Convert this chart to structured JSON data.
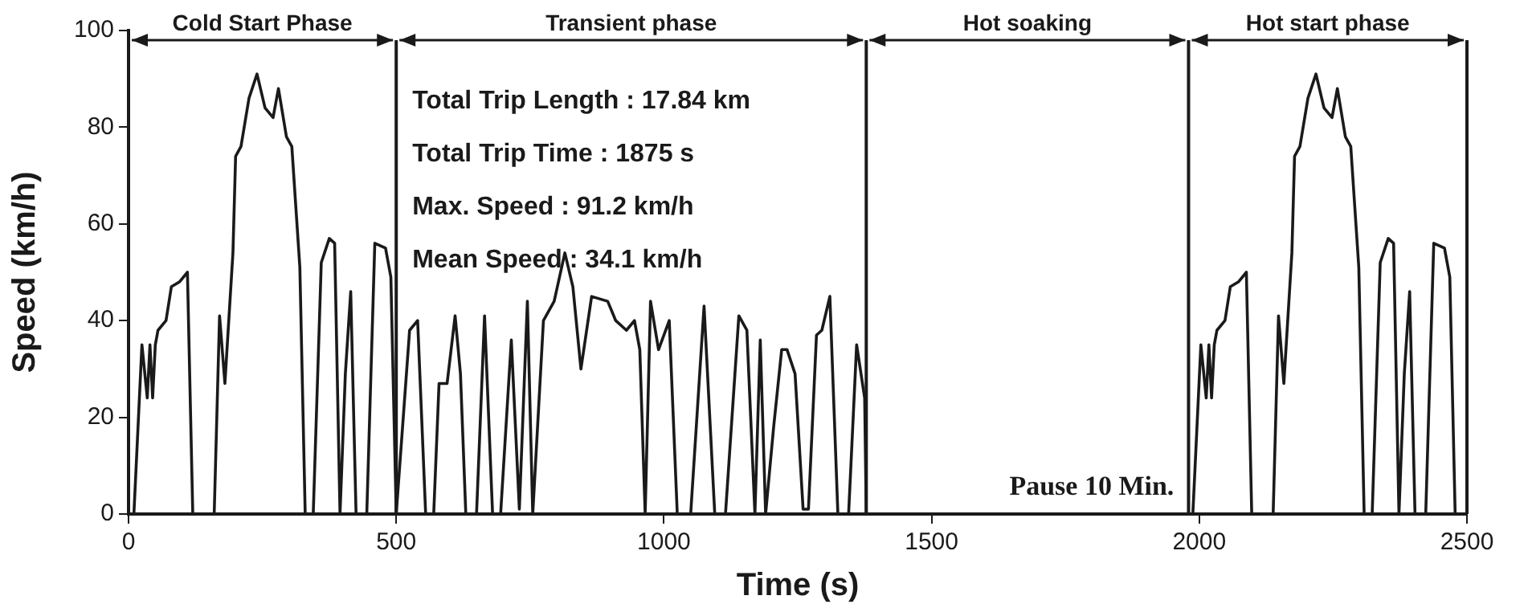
{
  "chart_data": {
    "type": "line",
    "xlabel": "Time (s)",
    "ylabel": "Speed (km/h)",
    "xlim": [
      0,
      2500
    ],
    "xticks": [
      0,
      500,
      1000,
      1500,
      2000,
      2500
    ],
    "ylim": [
      0,
      100
    ],
    "yticks": [
      0,
      20,
      40,
      60,
      80,
      100
    ],
    "grid": false,
    "legend": false,
    "marker": "none",
    "line_style": "solid",
    "series": [
      {
        "color": "#1a1a1a",
        "x": [
          10,
          25,
          35,
          40,
          45,
          50,
          55,
          70,
          80,
          95,
          110,
          120,
          160,
          170,
          180,
          195,
          200,
          210,
          225,
          240,
          255,
          270,
          280,
          295,
          305,
          320,
          330,
          345,
          360,
          375,
          385,
          395,
          405,
          415,
          425,
          445,
          460,
          480,
          490,
          500,
          525,
          540,
          555,
          570,
          580,
          595,
          610,
          620,
          630,
          650,
          665,
          680,
          695,
          715,
          730,
          745,
          755,
          775,
          795,
          815,
          830,
          845,
          865,
          895,
          910,
          930,
          945,
          955,
          965,
          975,
          990,
          1010,
          1025,
          1050,
          1075,
          1095,
          1115,
          1140,
          1155,
          1170,
          1180,
          1190,
          1205,
          1220,
          1230,
          1245,
          1260,
          1270,
          1285,
          1295,
          1310,
          1325,
          1345,
          1360,
          1375,
          1378,
          1988,
          2003,
          2013,
          2018,
          2023,
          2028,
          2033,
          2048,
          2058,
          2073,
          2088,
          2098,
          2138,
          2148,
          2158,
          2173,
          2178,
          2188,
          2203,
          2218,
          2233,
          2248,
          2258,
          2273,
          2283,
          2298,
          2308,
          2323,
          2338,
          2353,
          2363,
          2373,
          2383,
          2393,
          2403,
          2423,
          2438,
          2458,
          2468,
          2478
        ],
        "values": [
          0,
          35,
          24,
          35,
          24,
          35,
          38,
          40,
          47,
          48,
          50,
          0,
          0,
          41,
          27,
          54,
          74,
          76,
          86,
          91,
          84,
          82,
          88,
          78,
          76,
          51,
          0,
          0,
          52,
          57,
          56,
          0,
          29,
          46,
          0,
          0,
          56,
          55,
          49,
          0,
          38,
          40,
          0,
          0,
          27,
          27,
          41,
          29,
          0,
          0,
          41,
          0,
          0,
          36,
          1,
          44,
          0,
          40,
          44,
          54,
          47,
          30,
          45,
          44,
          40,
          38,
          40,
          34,
          0,
          44,
          34,
          40,
          0,
          0,
          43,
          0,
          0,
          41,
          38,
          0,
          36,
          0,
          18,
          34,
          34,
          29,
          1,
          1,
          37,
          38,
          45,
          0,
          0,
          35,
          24,
          0,
          0,
          35,
          24,
          35,
          24,
          35,
          38,
          40,
          47,
          48,
          50,
          0,
          0,
          41,
          27,
          54,
          74,
          76,
          86,
          91,
          84,
          82,
          88,
          78,
          76,
          51,
          0,
          0,
          52,
          57,
          56,
          0,
          29,
          46,
          0,
          0,
          56,
          55,
          49,
          0
        ]
      }
    ],
    "ref_lines": [
      {
        "axis": "x",
        "value": 500,
        "color": "#1a1a1a"
      },
      {
        "axis": "x",
        "value": 1378,
        "color": "#1a1a1a"
      },
      {
        "axis": "x",
        "value": 1980,
        "color": "#1a1a1a"
      }
    ],
    "annotations": [
      "Cold Start Phase",
      "Transient phase",
      "Hot soaking",
      "Hot start phase",
      "Total Trip Length : 17.84 km",
      "Total Trip Time : 1875 s",
      "Max. Speed : 91.2 km/h",
      "Mean Speed : 34.1 km/h",
      "Pause 10 Min."
    ]
  }
}
